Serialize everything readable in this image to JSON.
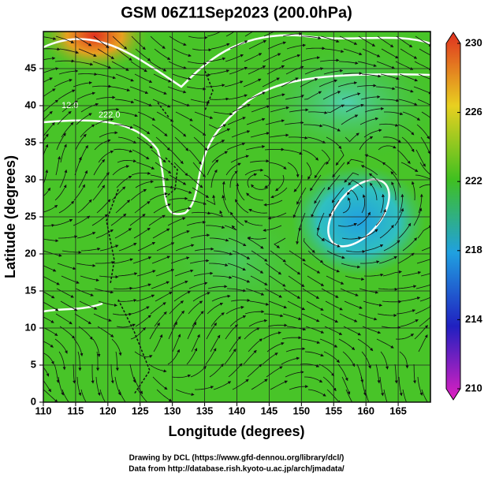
{
  "chart_data": {
    "type": "field",
    "title": "GSM 06Z11Sep2023 (200.0hPa)",
    "xlabel": "Longitude (degrees)",
    "ylabel": "Latitude  (degrees)",
    "xlim": [
      110,
      170
    ],
    "ylim": [
      0,
      50
    ],
    "xticks": [
      110,
      115,
      120,
      125,
      130,
      135,
      140,
      145,
      150,
      155,
      160,
      165
    ],
    "yticks": [
      0,
      5,
      10,
      15,
      20,
      25,
      30,
      35,
      40,
      45
    ],
    "grid": true,
    "colorbar": {
      "lim": [
        210,
        230
      ],
      "ticks": [
        210,
        214,
        218,
        222,
        226,
        230
      ],
      "colors": [
        "#e020c0",
        "#2020c0",
        "#20a0e0",
        "#40c020",
        "#e8d020",
        "#e03020"
      ]
    },
    "contour_labels": [
      "12.0",
      "222.0"
    ],
    "credits": [
      "Drawing by DCL (https://www.gfd-dennou.org/library/dcl/)",
      "Data from http://database.rish.kyoto-u.ac.jp/arch/jmadata/"
    ]
  }
}
